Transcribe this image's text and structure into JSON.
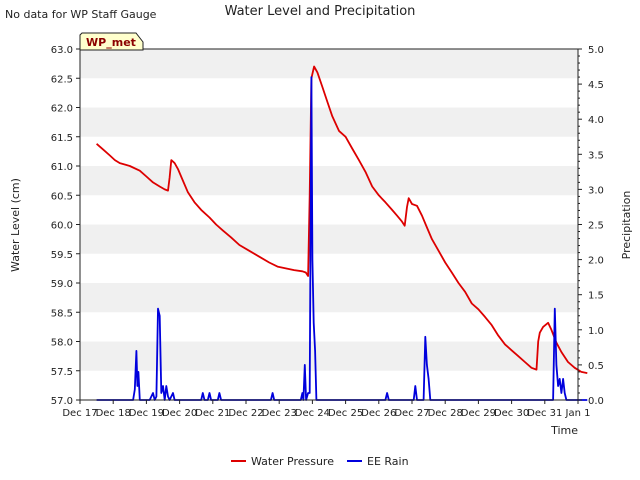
{
  "chart_data": {
    "type": "line",
    "title": "Water Level and Precipitation",
    "corner_note": "No data for WP Staff Gauge",
    "station_badge": "WP_met",
    "xlabel": "Time",
    "ylabel_left": "Water Level (cm)",
    "ylabel_right": "Precipitation",
    "xlim_days": [
      0,
      15
    ],
    "x_ticks": [
      "Dec 17",
      "Dec 18",
      "Dec 19",
      "Dec 20",
      "Dec 21",
      "Dec 22",
      "Dec 23",
      "Dec 24",
      "Dec 25",
      "Dec 26",
      "Dec 27",
      "Dec 28",
      "Dec 29",
      "Dec 30",
      "Dec 31",
      "Jan 1"
    ],
    "ylim_left": [
      57.0,
      63.0
    ],
    "y_ticks_left": [
      "57.0",
      "57.5",
      "58.0",
      "58.5",
      "59.0",
      "59.5",
      "60.0",
      "60.5",
      "61.0",
      "61.5",
      "62.0",
      "62.5",
      "63.0"
    ],
    "ylim_right": [
      0.0,
      5.0
    ],
    "y_ticks_right": [
      "0.0",
      "0.5",
      "1.0",
      "1.5",
      "2.0",
      "2.5",
      "3.0",
      "3.5",
      "4.0",
      "4.5",
      "5.0"
    ],
    "grid": "horizontal bands",
    "legend_position": "bottom-center",
    "colors": {
      "water": "#dd0000",
      "rain": "#0000dd",
      "band": "#f0f0f0",
      "badge_bg": "#ffffcc",
      "badge_text": "#8b0000"
    },
    "series": [
      {
        "name": "Water Pressure",
        "axis": "left",
        "points": [
          [
            0.5,
            61.38
          ],
          [
            0.7,
            61.28
          ],
          [
            0.9,
            61.18
          ],
          [
            1.05,
            61.1
          ],
          [
            1.2,
            61.05
          ],
          [
            1.5,
            61.0
          ],
          [
            1.8,
            60.92
          ],
          [
            2.0,
            60.82
          ],
          [
            2.2,
            60.72
          ],
          [
            2.4,
            60.65
          ],
          [
            2.55,
            60.6
          ],
          [
            2.65,
            60.58
          ],
          [
            2.7,
            60.8
          ],
          [
            2.75,
            61.1
          ],
          [
            2.85,
            61.05
          ],
          [
            2.95,
            60.95
          ],
          [
            3.1,
            60.75
          ],
          [
            3.25,
            60.55
          ],
          [
            3.45,
            60.38
          ],
          [
            3.65,
            60.25
          ],
          [
            3.9,
            60.12
          ],
          [
            4.1,
            60.0
          ],
          [
            4.3,
            59.9
          ],
          [
            4.55,
            59.78
          ],
          [
            4.8,
            59.65
          ],
          [
            5.1,
            59.55
          ],
          [
            5.4,
            59.45
          ],
          [
            5.7,
            59.35
          ],
          [
            5.95,
            59.28
          ],
          [
            6.2,
            59.25
          ],
          [
            6.45,
            59.22
          ],
          [
            6.7,
            59.2
          ],
          [
            6.8,
            59.18
          ],
          [
            6.87,
            59.12
          ],
          [
            6.92,
            60.5
          ],
          [
            6.97,
            62.5
          ],
          [
            7.05,
            62.7
          ],
          [
            7.15,
            62.6
          ],
          [
            7.3,
            62.35
          ],
          [
            7.45,
            62.1
          ],
          [
            7.6,
            61.85
          ],
          [
            7.8,
            61.6
          ],
          [
            8.0,
            61.5
          ],
          [
            8.2,
            61.3
          ],
          [
            8.4,
            61.1
          ],
          [
            8.6,
            60.9
          ],
          [
            8.8,
            60.65
          ],
          [
            9.0,
            60.5
          ],
          [
            9.2,
            60.38
          ],
          [
            9.4,
            60.25
          ],
          [
            9.55,
            60.15
          ],
          [
            9.7,
            60.05
          ],
          [
            9.78,
            59.98
          ],
          [
            9.85,
            60.3
          ],
          [
            9.9,
            60.45
          ],
          [
            10.0,
            60.35
          ],
          [
            10.15,
            60.32
          ],
          [
            10.3,
            60.15
          ],
          [
            10.45,
            59.95
          ],
          [
            10.6,
            59.75
          ],
          [
            10.8,
            59.55
          ],
          [
            11.0,
            59.35
          ],
          [
            11.2,
            59.18
          ],
          [
            11.4,
            59.0
          ],
          [
            11.6,
            58.85
          ],
          [
            11.8,
            58.65
          ],
          [
            12.0,
            58.55
          ],
          [
            12.2,
            58.42
          ],
          [
            12.4,
            58.28
          ],
          [
            12.6,
            58.1
          ],
          [
            12.8,
            57.95
          ],
          [
            13.0,
            57.85
          ],
          [
            13.2,
            57.75
          ],
          [
            13.4,
            57.65
          ],
          [
            13.6,
            57.55
          ],
          [
            13.75,
            57.52
          ],
          [
            13.8,
            58.0
          ],
          [
            13.85,
            58.15
          ],
          [
            13.95,
            58.25
          ],
          [
            14.1,
            58.32
          ],
          [
            14.2,
            58.2
          ],
          [
            14.35,
            57.98
          ],
          [
            14.5,
            57.82
          ],
          [
            14.7,
            57.65
          ],
          [
            14.9,
            57.55
          ],
          [
            15.1,
            57.48
          ],
          [
            15.28,
            57.46
          ]
        ]
      },
      {
        "name": "EE Rain",
        "axis": "right",
        "points": [
          [
            0.5,
            0
          ],
          [
            1.6,
            0
          ],
          [
            1.65,
            0.15
          ],
          [
            1.7,
            0.7
          ],
          [
            1.73,
            0.2
          ],
          [
            1.76,
            0.4
          ],
          [
            1.8,
            0
          ],
          [
            2.1,
            0
          ],
          [
            2.2,
            0.1
          ],
          [
            2.25,
            0
          ],
          [
            2.3,
            0.05
          ],
          [
            2.35,
            1.3
          ],
          [
            2.4,
            1.2
          ],
          [
            2.45,
            0.1
          ],
          [
            2.5,
            0.2
          ],
          [
            2.55,
            0
          ],
          [
            2.6,
            0.2
          ],
          [
            2.65,
            0.05
          ],
          [
            2.7,
            0
          ],
          [
            2.8,
            0.1
          ],
          [
            2.85,
            0
          ],
          [
            3.65,
            0
          ],
          [
            3.7,
            0.1
          ],
          [
            3.75,
            0
          ],
          [
            3.85,
            0
          ],
          [
            3.9,
            0.1
          ],
          [
            3.95,
            0
          ],
          [
            4.15,
            0
          ],
          [
            4.2,
            0.1
          ],
          [
            4.25,
            0
          ],
          [
            5.75,
            0
          ],
          [
            5.8,
            0.1
          ],
          [
            5.85,
            0
          ],
          [
            6.65,
            0
          ],
          [
            6.7,
            0.1
          ],
          [
            6.73,
            0
          ],
          [
            6.77,
            0.5
          ],
          [
            6.81,
            0
          ],
          [
            6.87,
            0.1
          ],
          [
            6.92,
            0.1
          ],
          [
            6.97,
            4.6
          ],
          [
            7.0,
            2.0
          ],
          [
            7.04,
            1.1
          ],
          [
            7.08,
            0.7
          ],
          [
            7.12,
            0
          ],
          [
            9.2,
            0
          ],
          [
            9.25,
            0.1
          ],
          [
            9.3,
            0
          ],
          [
            10.05,
            0
          ],
          [
            10.1,
            0.2
          ],
          [
            10.15,
            0
          ],
          [
            10.35,
            0
          ],
          [
            10.4,
            0.9
          ],
          [
            10.45,
            0.5
          ],
          [
            10.5,
            0.3
          ],
          [
            10.55,
            0
          ],
          [
            14.25,
            0
          ],
          [
            14.3,
            1.3
          ],
          [
            14.35,
            0.5
          ],
          [
            14.4,
            0.2
          ],
          [
            14.45,
            0.3
          ],
          [
            14.5,
            0.1
          ],
          [
            14.55,
            0.3
          ],
          [
            14.6,
            0.1
          ],
          [
            14.65,
            0
          ],
          [
            15.28,
            0
          ]
        ]
      }
    ]
  }
}
